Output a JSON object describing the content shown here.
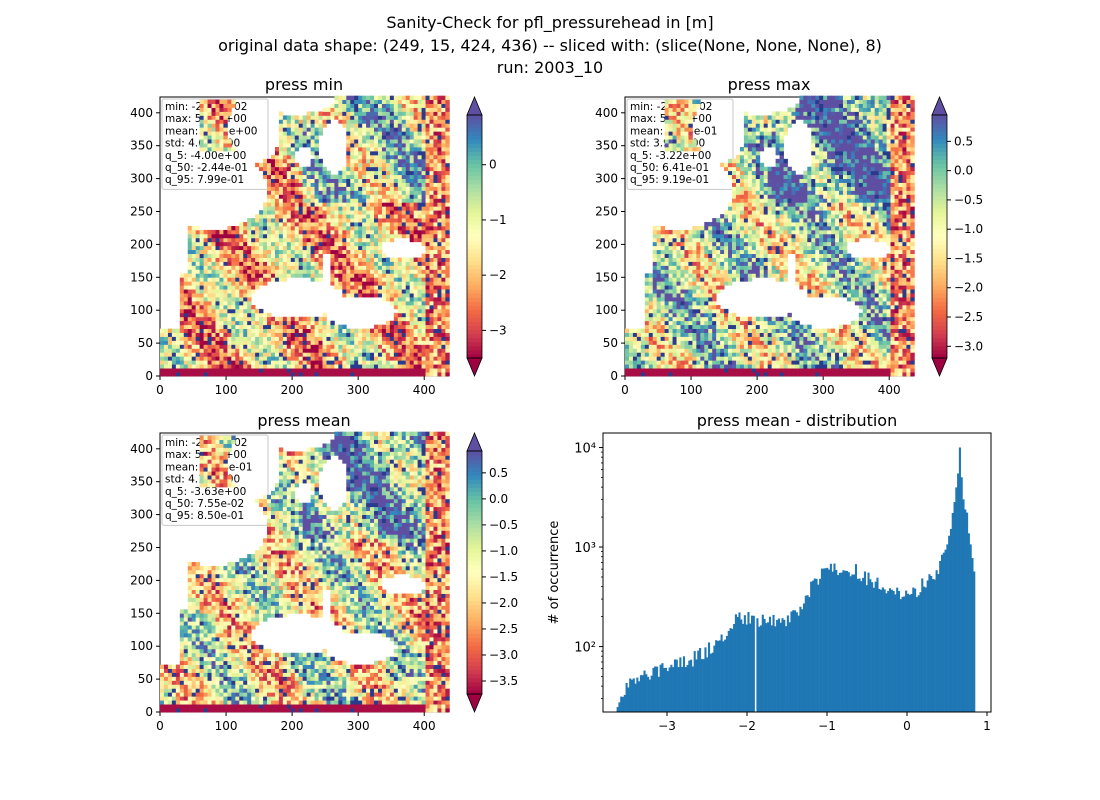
{
  "figure": {
    "title_lines": [
      "Sanity-Check for pfl_pressurehead in [m]",
      "original data shape: (249, 15, 424, 436) -- sliced with: (slice(None, None, None), 8)",
      "run: 2003_10"
    ]
  },
  "colormap": {
    "name": "Spectral",
    "stops": [
      "#9e0142",
      "#d53e4f",
      "#f46d43",
      "#fdae61",
      "#fee08b",
      "#ffffbf",
      "#e6f598",
      "#abdda4",
      "#66c2a5",
      "#3288bd",
      "#5e4fa2"
    ],
    "water_color": "#3d77b8",
    "river_color": "#2a3a8c"
  },
  "chart_data": [
    {
      "type": "heatmap",
      "title": "press min",
      "xlim": [
        0,
        436
      ],
      "ylim": [
        0,
        424
      ],
      "xticks": [
        0,
        100,
        200,
        300,
        400
      ],
      "yticks": [
        0,
        50,
        100,
        150,
        200,
        250,
        300,
        350,
        400
      ],
      "clim": [
        -3.5,
        0.9
      ],
      "cbar_ticks": [
        0,
        -1,
        -2,
        -3
      ],
      "cbar_tick_labels": [
        "0",
        "−1",
        "−2",
        "−3"
      ],
      "stats": [
        "min: -2.75e+02",
        "max: 5.36e+00",
        "mean: -1.01e+00",
        "std: 4.68e+00",
        "q_5: -4.00e+00",
        "q_50: -2.44e-01",
        "q_95: 7.99e-01"
      ],
      "bias": 0.25
    },
    {
      "type": "heatmap",
      "title": "press max",
      "xlim": [
        0,
        436
      ],
      "ylim": [
        0,
        424
      ],
      "xticks": [
        0,
        100,
        200,
        300,
        400
      ],
      "yticks": [
        0,
        50,
        100,
        150,
        200,
        250,
        300,
        350,
        400
      ],
      "clim": [
        -3.2,
        0.95
      ],
      "cbar_ticks": [
        0.5,
        0.0,
        -0.5,
        -1.0,
        -1.5,
        -2.0,
        -2.5,
        -3.0
      ],
      "cbar_tick_labels": [
        "0.5",
        "0.0",
        "−0.5",
        "−1.0",
        "−1.5",
        "−2.0",
        "−2.5",
        "−3.0"
      ],
      "stats": [
        "min: -2.75e+02",
        "max: 5.60e+00",
        "mean: -5.94e-01",
        "std: 3.92e+00",
        "q_5: -3.22e+00",
        "q_50: 6.41e-01",
        "q_95: 9.19e-01"
      ],
      "bias": 0.75
    },
    {
      "type": "heatmap",
      "title": "press mean",
      "xlim": [
        0,
        436
      ],
      "ylim": [
        0,
        424
      ],
      "xticks": [
        0,
        100,
        200,
        300,
        400
      ],
      "yticks": [
        0,
        50,
        100,
        150,
        200,
        250,
        300,
        350,
        400
      ],
      "clim": [
        -3.75,
        0.92
      ],
      "cbar_ticks": [
        0.5,
        0.0,
        -0.5,
        -1.0,
        -1.5,
        -2.0,
        -2.5,
        -3.0,
        -3.5
      ],
      "cbar_tick_labels": [
        "0.5",
        "0.0",
        "−0.5",
        "−1.0",
        "−1.5",
        "−2.0",
        "−2.5",
        "−3.0",
        "−3.5"
      ],
      "stats": [
        "min: -2.75e+02",
        "max: 5.45e+00",
        "mean: -8.04e-01",
        "std: 4.11e+00",
        "q_5: -3.63e+00",
        "q_50: 7.55e-02",
        "q_95: 8.50e-01"
      ],
      "bias": 0.55
    },
    {
      "type": "bar",
      "subtype": "histogram",
      "title": "press mean - distribution",
      "ylabel": "# of occurrence",
      "yscale": "log",
      "xlim": [
        -3.8,
        1.05
      ],
      "ylim": [
        22,
        14000
      ],
      "xticks": [
        -3,
        -2,
        -1,
        0,
        1
      ],
      "xtick_labels": [
        "−3",
        "−2",
        "−1",
        "0",
        "1"
      ],
      "yticks": [
        100,
        1000,
        10000
      ],
      "ytick_labels": [
        "10²",
        "10³",
        "10⁴"
      ],
      "bar_color": "#1f77b4",
      "bin_range": [
        -3.63,
        0.85
      ],
      "bins": 200,
      "profile": [
        [
          -3.63,
          25
        ],
        [
          -3.5,
          40
        ],
        [
          -3.3,
          50
        ],
        [
          -3.1,
          60
        ],
        [
          -2.9,
          65
        ],
        [
          -2.7,
          75
        ],
        [
          -2.5,
          90
        ],
        [
          -2.3,
          130
        ],
        [
          -2.2,
          175
        ],
        [
          -2.1,
          200
        ],
        [
          -2.0,
          195
        ],
        [
          -1.8,
          185
        ],
        [
          -1.6,
          190
        ],
        [
          -1.45,
          190
        ],
        [
          -1.35,
          250
        ],
        [
          -1.25,
          330
        ],
        [
          -1.15,
          440
        ],
        [
          -1.05,
          560
        ],
        [
          -0.95,
          610
        ],
        [
          -0.85,
          640
        ],
        [
          -0.75,
          630
        ],
        [
          -0.65,
          580
        ],
        [
          -0.5,
          480
        ],
        [
          -0.35,
          410
        ],
        [
          -0.2,
          350
        ],
        [
          -0.05,
          330
        ],
        [
          0.1,
          360
        ],
        [
          0.25,
          460
        ],
        [
          0.4,
          650
        ],
        [
          0.5,
          1100
        ],
        [
          0.58,
          2200
        ],
        [
          0.63,
          4500
        ],
        [
          0.66,
          10000
        ],
        [
          0.7,
          3500
        ],
        [
          0.75,
          2000
        ],
        [
          0.8,
          1000
        ],
        [
          0.85,
          600
        ]
      ]
    }
  ]
}
